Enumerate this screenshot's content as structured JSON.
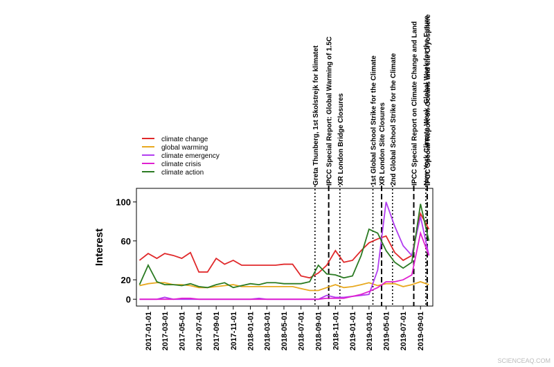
{
  "chart_data": {
    "type": "line",
    "ylabel": "Interest",
    "x": [
      "2016-12-01",
      "2017-01-01",
      "2017-02-01",
      "2017-03-01",
      "2017-04-01",
      "2017-05-01",
      "2017-06-01",
      "2017-07-01",
      "2017-08-01",
      "2017-09-01",
      "2017-10-01",
      "2017-11-01",
      "2017-12-01",
      "2018-01-01",
      "2018-02-01",
      "2018-03-01",
      "2018-04-01",
      "2018-05-01",
      "2018-06-01",
      "2018-07-01",
      "2018-08-01",
      "2018-09-01",
      "2018-10-01",
      "2018-11-01",
      "2018-12-01",
      "2019-01-01",
      "2019-02-01",
      "2019-03-01",
      "2019-04-01",
      "2019-05-01",
      "2019-06-01",
      "2019-07-01",
      "2019-08-01",
      "2019-09-01",
      "2019-10-01"
    ],
    "series": [
      {
        "name": "climate change",
        "color": "#e0282a",
        "values": [
          40,
          47,
          42,
          47,
          45,
          42,
          48,
          28,
          28,
          42,
          36,
          40,
          35,
          35,
          35,
          35,
          35,
          36,
          36,
          24,
          22,
          27,
          35,
          50,
          38,
          40,
          50,
          58,
          62,
          65,
          48,
          40,
          45,
          88,
          72
        ]
      },
      {
        "name": "global warming",
        "color": "#e8a81e",
        "values": [
          14,
          16,
          17,
          17,
          15,
          15,
          14,
          12,
          12,
          13,
          14,
          15,
          13,
          13,
          13,
          13,
          13,
          13,
          13,
          11,
          9,
          9,
          12,
          15,
          12,
          13,
          15,
          17,
          14,
          16,
          16,
          13,
          15,
          18,
          15
        ]
      },
      {
        "name": "climate emergency",
        "color": "#b13cf0",
        "values": [
          0,
          0,
          0,
          2,
          0,
          0,
          0,
          0,
          0,
          0,
          0,
          0,
          0,
          0,
          1,
          0,
          0,
          0,
          0,
          0,
          0,
          0,
          4,
          2,
          2,
          3,
          4,
          5,
          30,
          100,
          75,
          55,
          45,
          85,
          45
        ]
      },
      {
        "name": "climate crisis",
        "color": "#e020d0",
        "values": [
          0,
          0,
          0,
          0,
          0,
          1,
          1,
          0,
          0,
          0,
          0,
          0,
          0,
          0,
          0,
          0,
          0,
          0,
          0,
          0,
          0,
          0,
          1,
          1,
          1,
          3,
          5,
          8,
          12,
          18,
          18,
          20,
          25,
          68,
          45
        ]
      },
      {
        "name": "climate action",
        "color": "#2a7a22",
        "values": [
          15,
          35,
          18,
          15,
          15,
          14,
          16,
          13,
          12,
          15,
          17,
          12,
          14,
          16,
          15,
          17,
          17,
          16,
          16,
          16,
          18,
          35,
          26,
          25,
          22,
          24,
          45,
          72,
          68,
          50,
          38,
          32,
          38,
          98,
          60
        ]
      }
    ],
    "xlim": [
      "2016-11-20",
      "2019-10-15"
    ],
    "xticks": [
      "2017-01-01",
      "2017-03-01",
      "2017-05-01",
      "2017-07-01",
      "2017-09-01",
      "2017-11-01",
      "2018-01-01",
      "2018-03-01",
      "2018-05-01",
      "2018-07-01",
      "2018-09-01",
      "2018-11-01",
      "2019-01-01",
      "2019-03-01",
      "2019-05-01",
      "2019-07-01",
      "2019-09-01"
    ],
    "ylim": [
      -7,
      114
    ],
    "yticks": [
      0,
      20,
      60,
      100
    ],
    "legend": "upper-left",
    "events": [
      {
        "date": "2018-08-20",
        "label": "Greta Thunberg, 1st Skolstrejk for klimatet",
        "style": "dotted"
      },
      {
        "date": "2018-10-08",
        "label": "IPCC Special Report: Global Warming of 1.5C",
        "style": "dashed"
      },
      {
        "date": "2018-11-17",
        "label": "XR London Bridge Closures",
        "style": "dotted"
      },
      {
        "date": "2019-03-15",
        "label": "1st Global School Strike for the Climate",
        "style": "dotted"
      },
      {
        "date": "2019-04-15",
        "label": "XR London Site Closures",
        "style": "dashed"
      },
      {
        "date": "2019-05-24",
        "label": "2nd Global School Strike for the Climate",
        "style": "dotted"
      },
      {
        "date": "2019-08-08",
        "label": "IPCC Special Report on Climate Change and Land",
        "style": "dashed"
      },
      {
        "date": "2019-09-20",
        "label": "New York Climate Week, Global Week for the Future",
        "style": "dotted"
      },
      {
        "date": "2019-09-25",
        "label": "IPCC Special Report on Oceans and the Cryosphere",
        "style": "dashed"
      }
    ]
  },
  "watermark": "SCIENCEAQ.COM"
}
